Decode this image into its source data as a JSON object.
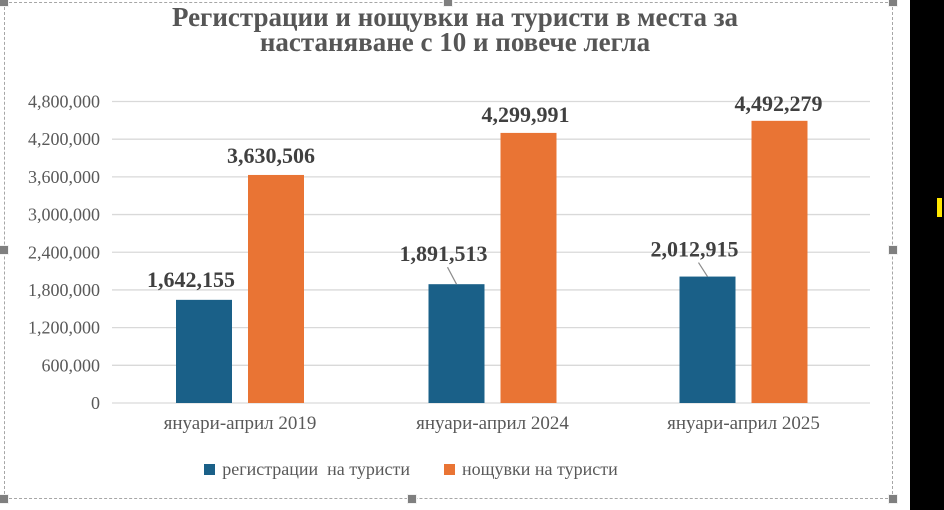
{
  "app": {
    "outside_background": "#000000",
    "canvas_background": "#FFFFFF",
    "marker_color": "#FFE600",
    "selection_handle_color": "#7F7F7F",
    "selection_border_color": "#A6A6A6"
  },
  "chart_data": {
    "type": "bar",
    "title": "Регистрации и нощувки на туристи в места за настаняване с 10 и повече легла",
    "title_lines": [
      "Регистрации и нощувки на туристи в места за",
      "настаняване с 10 и повече легла"
    ],
    "categories": [
      "януари-април 2019",
      "януари-април 2024",
      "януари-април 2025"
    ],
    "series": [
      {
        "name": "регистрации  на туристи",
        "color": "#1A6088",
        "values": [
          1642155,
          1891513,
          2012915
        ],
        "value_labels": [
          "1,642,155",
          "1,891,513",
          "2,012,915"
        ]
      },
      {
        "name": "нощувки на туристи",
        "color": "#E97434",
        "values": [
          3630506,
          4299991,
          4492279
        ],
        "value_labels": [
          "3,630,506",
          "4,299,991",
          "4,492,279"
        ]
      }
    ],
    "y_axis": {
      "min": 0,
      "max": 4800000,
      "step": 600000,
      "tick_labels": [
        "0",
        "600,000",
        "1,200,000",
        "1,800,000",
        "2,400,000",
        "3,000,000",
        "3,600,000",
        "4,200,000",
        "4,800,000"
      ]
    },
    "xlabel": "",
    "ylabel": "",
    "legend_position": "bottom",
    "grid": true,
    "styles": {
      "text_color": "#595959",
      "data_label_color": "#404040",
      "gridline_color": "#D9D9D9",
      "leader_line_color": "#8C8C8C",
      "title_color": "#565656"
    }
  }
}
